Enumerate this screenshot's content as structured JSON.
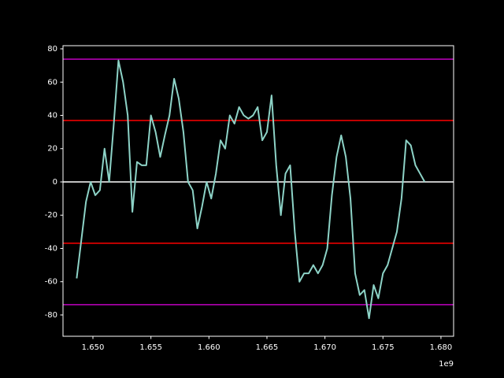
{
  "chart_data": {
    "type": "line",
    "x": [
      1.6486,
      1.649,
      1.6494,
      1.6498,
      1.6502,
      1.6506,
      1.651,
      1.6514,
      1.6518,
      1.6522,
      1.6526,
      1.653,
      1.6534,
      1.6538,
      1.6542,
      1.6546,
      1.655,
      1.6554,
      1.6558,
      1.6562,
      1.6566,
      1.657,
      1.6574,
      1.6578,
      1.6582,
      1.6586,
      1.659,
      1.6594,
      1.6598,
      1.6602,
      1.6606,
      1.661,
      1.6614,
      1.6618,
      1.6622,
      1.6626,
      1.663,
      1.6634,
      1.6638,
      1.6642,
      1.6646,
      1.665,
      1.6654,
      1.6658,
      1.6662,
      1.6666,
      1.667,
      1.6674,
      1.6678,
      1.6682,
      1.6686,
      1.669,
      1.6694,
      1.6698,
      1.6702,
      1.6706,
      1.671,
      1.6714,
      1.6718,
      1.6722,
      1.6726,
      1.673,
      1.6734,
      1.6738,
      1.6742,
      1.6746,
      1.675,
      1.6754,
      1.6758,
      1.6762,
      1.6766,
      1.677,
      1.6774,
      1.6778,
      1.6782,
      1.6786
    ],
    "series": [
      {
        "color": "#8dd3c7",
        "values": [
          -58,
          -35,
          -12,
          0,
          -8,
          -5,
          20,
          0,
          35,
          73,
          60,
          40,
          -18,
          12,
          10,
          10,
          40,
          30,
          15,
          28,
          40,
          62,
          50,
          30,
          0,
          -5,
          -28,
          -15,
          0,
          -10,
          5,
          25,
          20,
          40,
          35,
          45,
          40,
          38,
          40,
          45,
          25,
          30,
          52,
          10,
          -20,
          5,
          10,
          -30,
          -60,
          -55,
          -55,
          -50,
          -55,
          -50,
          -40,
          -8,
          15,
          28,
          15,
          -10,
          -55,
          -68,
          -65,
          -82,
          -62,
          -70,
          -55,
          -50,
          -40,
          -30,
          -10,
          25,
          22,
          10,
          5,
          0
        ]
      }
    ],
    "hlines": [
      {
        "value": 0,
        "color": "#ffffff"
      },
      {
        "value": 36.9,
        "color": "#ff0000"
      },
      {
        "value": -36.9,
        "color": "#ff0000"
      },
      {
        "value": 73.8,
        "color": "#bf00bf"
      },
      {
        "value": -73.8,
        "color": "#bf00bf"
      }
    ],
    "xlim": [
      1.64742,
      1.68109
    ],
    "ylim": [
      -92.8,
      81.9
    ],
    "xticks": [
      {
        "value": 1.65,
        "label": "1.650"
      },
      {
        "value": 1.655,
        "label": "1.655"
      },
      {
        "value": 1.66,
        "label": "1.660"
      },
      {
        "value": 1.665,
        "label": "1.665"
      },
      {
        "value": 1.67,
        "label": "1.670"
      },
      {
        "value": 1.675,
        "label": "1.675"
      },
      {
        "value": 1.68,
        "label": "1.680"
      }
    ],
    "x_offset_label": "1e9",
    "yticks": [
      -80,
      -60,
      -40,
      -20,
      0,
      20,
      40,
      60,
      80
    ]
  }
}
